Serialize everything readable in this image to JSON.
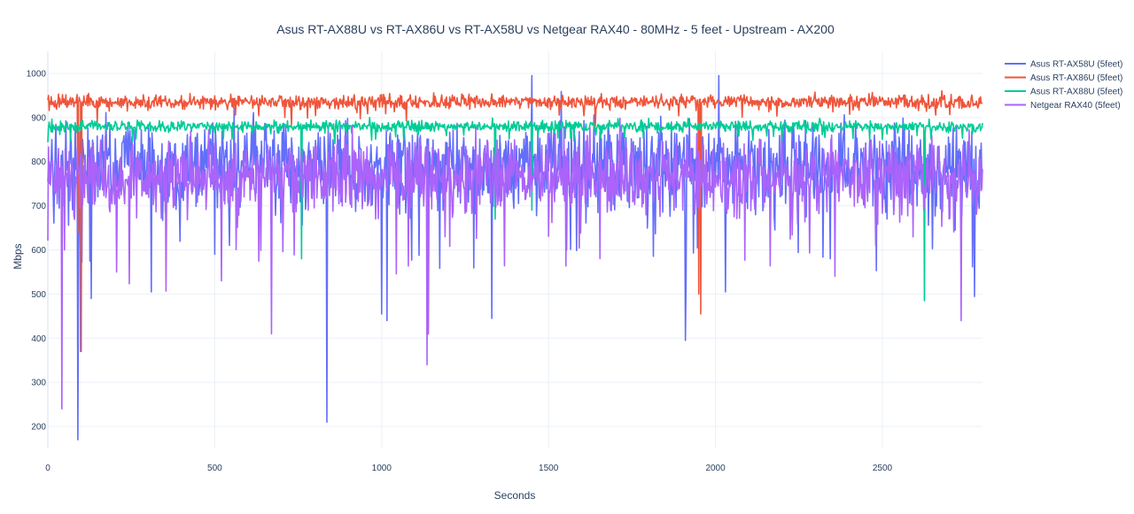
{
  "chart_data": {
    "type": "line",
    "title": "Asus RT-AX88U vs RT-AX86U vs RT-AX58U vs Netgear RAX40 - 80MHz - 5 feet - Upstream - AX200",
    "xlabel": "Seconds",
    "ylabel": "Mbps",
    "xlim": [
      0,
      2800
    ],
    "ylim": [
      150,
      1050
    ],
    "x_ticks": [
      0,
      500,
      1000,
      1500,
      2000,
      2500
    ],
    "y_ticks": [
      200,
      300,
      400,
      500,
      600,
      700,
      800,
      900,
      1000
    ],
    "grid": true,
    "legend_position": "top-right",
    "sample_interval_seconds": 2,
    "series": [
      {
        "name": "Asus RT-AX58U (5feet)",
        "color": "#636efa",
        "mean": 790,
        "spread": 75,
        "min": 170,
        "max": 1000,
        "dips": [
          [
            90,
            170
          ],
          [
            98,
            370
          ],
          [
            130,
            490
          ],
          [
            310,
            505
          ],
          [
            835,
            210
          ],
          [
            1000,
            455
          ],
          [
            1015,
            440
          ],
          [
            1330,
            445
          ],
          [
            1910,
            395
          ],
          [
            2030,
            505
          ],
          [
            1450,
            995
          ],
          [
            2010,
            995
          ]
        ]
      },
      {
        "name": "Asus RT-AX86U (5feet)",
        "color": "#ef553b",
        "mean": 935,
        "spread": 12,
        "min": 455,
        "max": 970,
        "dips": [
          [
            90,
            640
          ],
          [
            100,
            370
          ],
          [
            1955,
            455
          ],
          [
            1950,
            500
          ]
        ]
      },
      {
        "name": "Asus RT-AX88U (5feet)",
        "color": "#00cc96",
        "mean": 880,
        "spread": 10,
        "min": 485,
        "max": 905,
        "dips": [
          [
            760,
            580
          ],
          [
            1340,
            670
          ],
          [
            1450,
            690
          ],
          [
            2625,
            485
          ]
        ]
      },
      {
        "name": "Netgear RAX40 (5feet)",
        "color": "#ab63fa",
        "mean": 765,
        "spread": 60,
        "min": 240,
        "max": 900,
        "dips": [
          [
            42,
            240
          ],
          [
            50,
            600
          ],
          [
            670,
            410
          ],
          [
            1135,
            340
          ],
          [
            1140,
            410
          ],
          [
            2735,
            440
          ],
          [
            520,
            530
          ],
          [
            205,
            550
          ]
        ]
      }
    ]
  }
}
